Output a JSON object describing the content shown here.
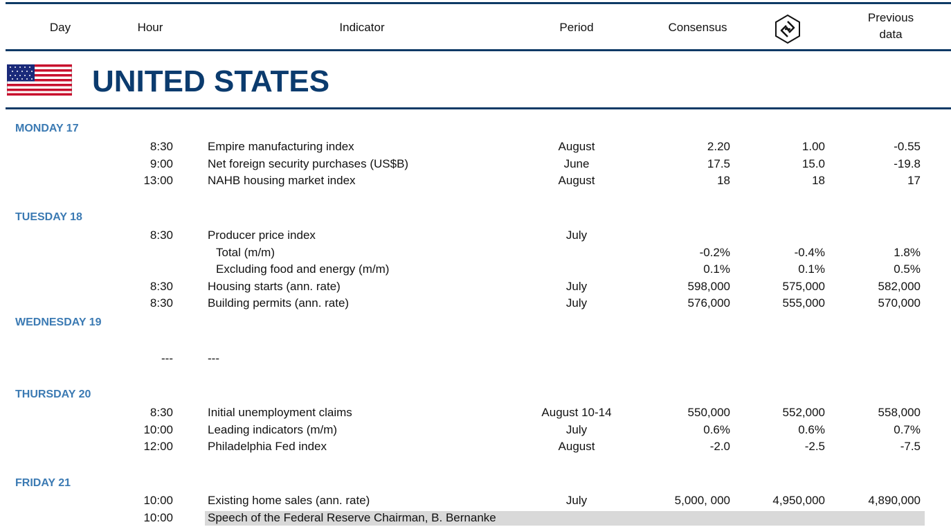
{
  "header": {
    "columns": [
      "Day",
      "Hour",
      "Indicator",
      "Period",
      "Consensus",
      "Previous data"
    ]
  },
  "section": {
    "title": "UNITED STATES"
  },
  "days": [
    {
      "name": "MONDAY 17",
      "rows": [
        {
          "hour": "8:30",
          "indicator": "Empire manufacturing index",
          "period": "August",
          "consensus": "2.20",
          "forecast": "1.00",
          "previous": "-0.55"
        },
        {
          "hour": "9:00",
          "indicator": "Net foreign security purchases (US$B)",
          "period": "June",
          "consensus": "17.5",
          "forecast": "15.0",
          "previous": "-19.8"
        },
        {
          "hour": "13:00",
          "indicator": "NAHB housing market index",
          "period": "August",
          "consensus": "18",
          "forecast": "18",
          "previous": "17"
        }
      ]
    },
    {
      "name": "TUESDAY 18",
      "rows": [
        {
          "hour": "8:30",
          "indicator": "Producer price index",
          "period": "July",
          "items": [
            {
              "indicator": "Total (m/m)",
              "consensus": "-0.2%",
              "forecast": "-0.4%",
              "previous": "1.8%"
            },
            {
              "indicator": "Excluding food and energy (m/m)",
              "consensus": "0.1%",
              "forecast": "0.1%",
              "previous": "0.5%"
            }
          ]
        },
        {
          "hour": "8:30",
          "indicator": "Housing starts (ann. rate)",
          "period": "July",
          "consensus": "598,000",
          "forecast": "575,000",
          "previous": "582,000"
        },
        {
          "hour": "8:30",
          "indicator": "Building permits (ann. rate)",
          "period": "July",
          "consensus": "576,000",
          "forecast": "555,000",
          "previous": "570,000"
        }
      ]
    },
    {
      "name": "WEDNESDAY 19",
      "rows": [
        {
          "hour": "---",
          "indicator": "---"
        }
      ]
    },
    {
      "name": "THURSDAY 20",
      "rows": [
        {
          "hour": "8:30",
          "indicator": "Initial unemployment claims",
          "period": "August 10-14",
          "consensus": "550,000",
          "forecast": "552,000",
          "previous": "558,000"
        },
        {
          "hour": "10:00",
          "indicator": "Leading indicators (m/m)",
          "period": "July",
          "consensus": "0.6%",
          "forecast": "0.6%",
          "previous": "0.7%"
        },
        {
          "hour": "12:00",
          "indicator": "Philadelphia Fed index",
          "period": "August",
          "consensus": "-2.0",
          "forecast": "-2.5",
          "previous": "-7.5"
        }
      ]
    },
    {
      "name": "FRIDAY 21",
      "rows": [
        {
          "hour": "10:00",
          "indicator": "Existing home sales (ann. rate)",
          "period": "July",
          "consensus": "5,000, 000",
          "forecast": "4,950,000",
          "previous": "4,890,000"
        },
        {
          "hour": "10:00",
          "indicator": "Speech of the Federal Reserve Chairman, B. Bernanke"
        }
      ]
    }
  ]
}
